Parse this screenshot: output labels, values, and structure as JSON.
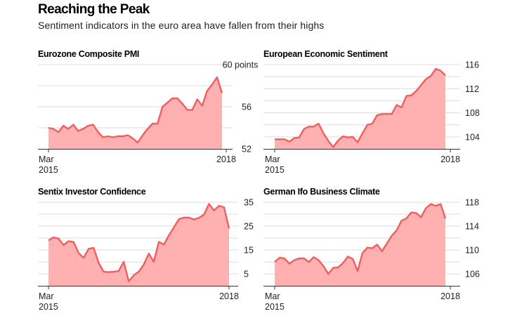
{
  "header": {
    "title": "Reaching the Peak",
    "subtitle": "Sentiment indicators in the euro area have fallen from their highs"
  },
  "colors": {
    "line": "#f25e5e",
    "fill": "#ffb0b0",
    "grid": "#e3e3e3",
    "axis": "#333333"
  },
  "chart_data": [
    {
      "type": "area",
      "title": "Eurozone Composite PMI",
      "xlabel": "",
      "ylabel": "",
      "x_tick_labels": [
        [
          "Mar",
          "2015"
        ],
        [
          "2018"
        ]
      ],
      "x_range": [
        "Mar 2015",
        "Jan 2018"
      ],
      "y_ticks": [
        52,
        56,
        60
      ],
      "y_tick_labels": [
        "52",
        "56",
        "60 points"
      ],
      "gridlines": [
        52,
        54,
        56,
        58,
        60
      ],
      "ylim": [
        52,
        60
      ],
      "grid": true,
      "values": [
        54.0,
        53.9,
        53.6,
        54.2,
        53.9,
        54.3,
        53.7,
        53.9,
        54.2,
        54.3,
        53.6,
        53.1,
        53.2,
        53.1,
        53.2,
        53.2,
        53.3,
        53.0,
        52.6,
        53.3,
        53.9,
        54.4,
        54.4,
        56.0,
        56.4,
        56.8,
        56.8,
        56.3,
        55.7,
        55.7,
        56.7,
        56.1,
        57.5,
        58.1,
        58.8,
        57.3
      ]
    },
    {
      "type": "area",
      "title": "European Economic Sentiment",
      "xlabel": "",
      "ylabel": "",
      "x_tick_labels": [
        [
          "Mar",
          "2015"
        ],
        [
          "2018"
        ]
      ],
      "x_range": [
        "Mar 2015",
        "Jan 2018"
      ],
      "y_ticks": [
        104,
        108,
        112,
        116
      ],
      "y_tick_labels": [
        "104",
        "108",
        "112",
        "116"
      ],
      "gridlines": [
        104,
        106,
        108,
        110,
        112,
        114,
        116
      ],
      "ylim": [
        102,
        116
      ],
      "grid": true,
      "values": [
        103.6,
        103.6,
        103.6,
        103.2,
        103.8,
        103.9,
        105.3,
        105.7,
        105.7,
        106.2,
        104.6,
        103.3,
        102.3,
        103.4,
        104.1,
        103.9,
        104.0,
        103.1,
        104.6,
        106.0,
        106.2,
        107.6,
        107.8,
        107.8,
        107.8,
        109.3,
        108.9,
        110.8,
        110.9,
        111.6,
        112.6,
        113.6,
        114.1,
        115.3,
        115.0,
        114.2
      ]
    },
    {
      "type": "area",
      "title": "Sentix Investor Confidence",
      "xlabel": "",
      "ylabel": "",
      "x_tick_labels": [
        [
          "Mar",
          "2015"
        ],
        [
          "2018"
        ]
      ],
      "x_range": [
        "Mar 2015",
        "Jan 2018"
      ],
      "y_ticks": [
        5,
        15,
        25,
        35
      ],
      "y_tick_labels": [
        "5",
        "15",
        "25",
        "35"
      ],
      "gridlines": [
        5,
        10,
        15,
        20,
        25,
        30,
        35
      ],
      "ylim": [
        0,
        35
      ],
      "grid": true,
      "values": [
        19.0,
        20.3,
        19.8,
        17.1,
        18.7,
        18.4,
        13.8,
        11.7,
        15.5,
        15.9,
        9.6,
        5.9,
        5.7,
        5.9,
        6.2,
        10.1,
        1.9,
        4.4,
        5.9,
        8.9,
        13.5,
        10.1,
        18.4,
        17.3,
        21.1,
        24.5,
        27.9,
        28.6,
        28.6,
        27.8,
        28.5,
        29.8,
        34.3,
        31.6,
        33.5,
        32.9,
        24.0
      ]
    },
    {
      "type": "area",
      "title": "German Ifo Business Climate",
      "xlabel": "",
      "ylabel": "",
      "x_tick_labels": [
        [
          "Mar",
          "2015"
        ],
        [
          "2018"
        ]
      ],
      "x_range": [
        "Mar 2015",
        "Jan 2018"
      ],
      "y_ticks": [
        106,
        110,
        114,
        118
      ],
      "y_tick_labels": [
        "106",
        "110",
        "114",
        "118"
      ],
      "gridlines": [
        106,
        108,
        110,
        112,
        114,
        116,
        118
      ],
      "ylim": [
        104,
        118
      ],
      "grid": true,
      "values": [
        108.0,
        108.7,
        108.6,
        107.7,
        108.3,
        108.6,
        108.6,
        108.0,
        108.8,
        108.3,
        107.3,
        106.0,
        107.0,
        107.1,
        107.8,
        108.9,
        108.5,
        106.5,
        109.5,
        110.4,
        110.3,
        110.9,
        109.8,
        111.1,
        112.4,
        113.3,
        114.9,
        115.3,
        116.3,
        116.2,
        115.5,
        117.0,
        117.7,
        117.4,
        117.7,
        115.3
      ]
    }
  ]
}
